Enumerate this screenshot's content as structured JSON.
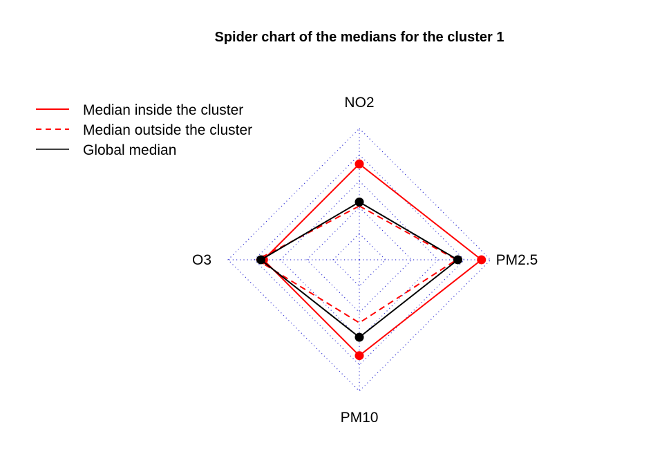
{
  "chart_data": {
    "type": "radar",
    "title": "Spider chart of the medians for the cluster 1",
    "axes": [
      "NO2",
      "PM2.5",
      "PM10",
      "O3"
    ],
    "range": [
      0,
      1
    ],
    "grid_levels": 5,
    "grid": true,
    "legend_position": "top-left",
    "series": [
      {
        "name": "Median inside the cluster",
        "values": [
          0.73,
          0.93,
          0.73,
          0.73
        ],
        "color": "#ff0000",
        "line": "solid",
        "markers": true
      },
      {
        "name": "Median outside the cluster",
        "values": [
          0.41,
          0.74,
          0.48,
          0.78
        ],
        "color": "#ff0000",
        "line": "dashed",
        "markers": false
      },
      {
        "name": "Global median",
        "values": [
          0.44,
          0.75,
          0.59,
          0.75
        ],
        "color": "#000000",
        "line": "solid",
        "markers": true
      }
    ]
  }
}
